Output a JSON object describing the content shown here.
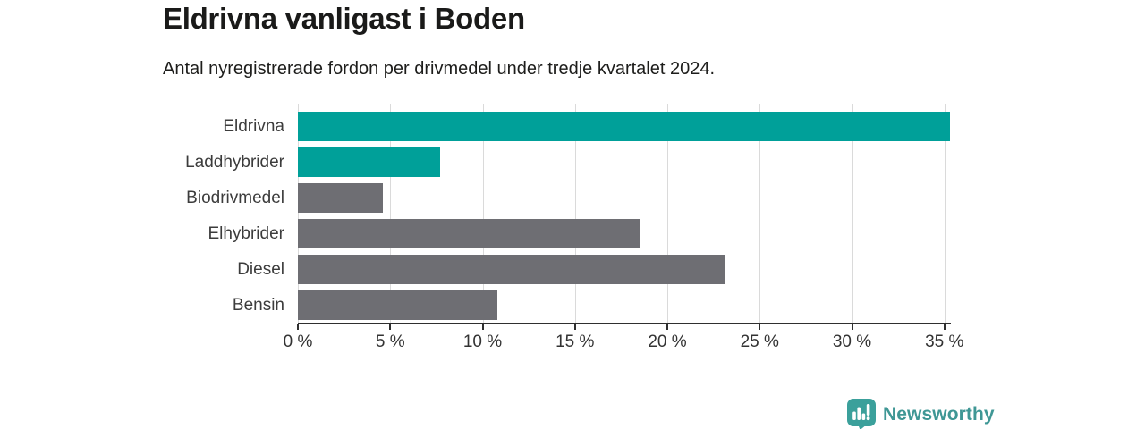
{
  "header": {
    "title": "Eldrivna vanligast i Boden",
    "subtitle": "Antal nyregistrerade fordon per drivmedel under tredje kvartalet 2024."
  },
  "chart_data": {
    "type": "bar",
    "orientation": "horizontal",
    "title": "Eldrivna vanligast i Boden",
    "subtitle": "Antal nyregistrerade fordon per drivmedel under tredje kvartalet 2024.",
    "categories": [
      "Eldrivna",
      "Laddhybrider",
      "Biodrivmedel",
      "Elhybrider",
      "Diesel",
      "Bensin"
    ],
    "values": [
      35.3,
      7.7,
      4.6,
      18.5,
      23.1,
      10.8
    ],
    "unit": "%",
    "xlabel": "",
    "ylabel": "",
    "xlim": [
      0,
      35.35
    ],
    "xticks": [
      0,
      5,
      10,
      15,
      20,
      25,
      30,
      35
    ],
    "xtick_suffix": " %",
    "grid": true,
    "legend": "none",
    "bar_colors": [
      "#00a099",
      "#00a099",
      "#6e6e73",
      "#6e6e73",
      "#6e6e73",
      "#6e6e73"
    ],
    "highlight_color": "#00a099",
    "default_color": "#6e6e73",
    "gridline_color": "#dadada",
    "axis_color": "#2f2f2f"
  },
  "footer": {
    "brand": "Newsworthy",
    "brand_color": "#3f9795",
    "logo_icon": "bar-chart-pin-icon",
    "logo_icon_color": "#3ba09b"
  }
}
